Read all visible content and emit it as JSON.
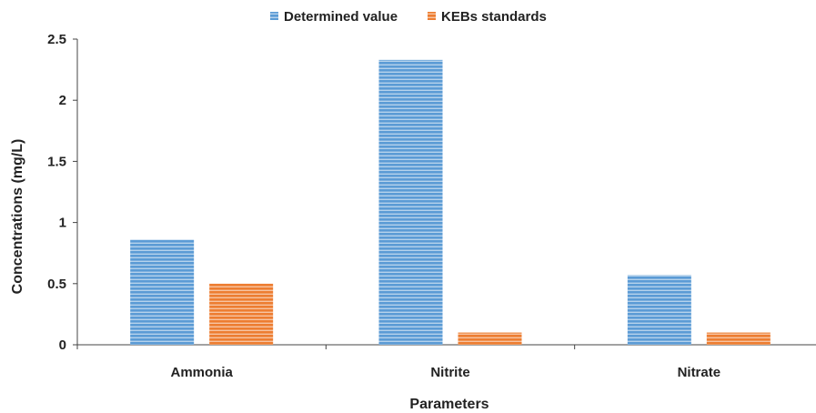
{
  "chart_data": {
    "type": "bar",
    "categories": [
      "Ammonia",
      "Nitrite",
      "Nitrate"
    ],
    "series": [
      {
        "name": "Determined value",
        "values": [
          0.86,
          2.33,
          0.57
        ],
        "color": "#5B9BD5"
      },
      {
        "name": "KEBs standards",
        "values": [
          0.5,
          0.1,
          0.1
        ],
        "color": "#ED7D31"
      }
    ],
    "xlabel": "Parameters",
    "ylabel": "Concentrations (mg/L)",
    "ylim": [
      0,
      2.5
    ],
    "yticks": [
      "0",
      "0.5",
      "1",
      "1.5",
      "2",
      "2.5"
    ],
    "legend_position": "top",
    "grid": false,
    "bar_pattern": "horizontal-stripes"
  }
}
